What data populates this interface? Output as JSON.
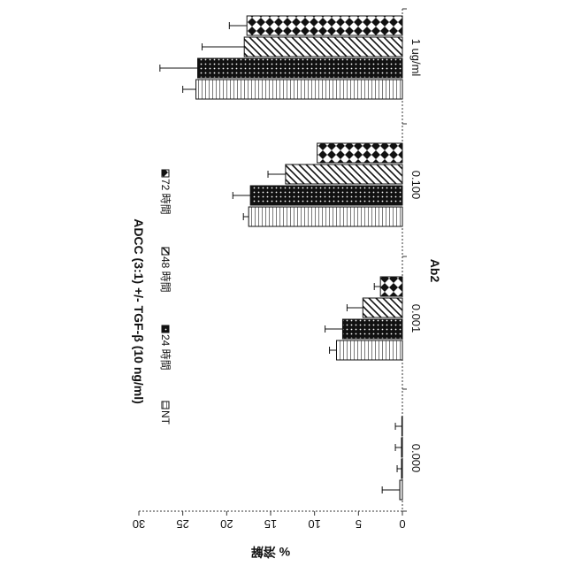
{
  "chart_data": {
    "type": "bar",
    "title": "ADCC (3:1) +/- TGF-β (10 ng/ml)",
    "xlabel": "Ab2",
    "ylabel": "% 溶解",
    "categories": [
      "0.000",
      "0.001",
      "0.100",
      "1 ug/ml"
    ],
    "ylim": [
      0,
      30
    ],
    "yticks": [
      "0",
      "5",
      "10",
      "15",
      "20",
      "25",
      "30"
    ],
    "rotation": "rotated 90° clockwise (value axis runs along the bottom edge)",
    "grid": false,
    "legend_position": "top",
    "series": [
      {
        "name": "NT",
        "values": [
          0.3,
          7.5,
          17.5,
          23.5
        ],
        "errors": [
          2.0,
          0.8,
          0.6,
          1.5
        ],
        "pattern": "horizontal-lines"
      },
      {
        "name": "24 時間",
        "values": [
          0.1,
          6.8,
          17.3,
          23.3
        ],
        "errors": [
          0.5,
          2.0,
          2.0,
          4.3
        ],
        "pattern": "dots"
      },
      {
        "name": "48 時間",
        "values": [
          0.1,
          4.5,
          13.3,
          18.0
        ],
        "errors": [
          0.7,
          1.8,
          2.0,
          4.8
        ],
        "pattern": "diagonal-lines"
      },
      {
        "name": "72 時間",
        "values": [
          0.0,
          2.5,
          9.7,
          17.7
        ],
        "errors": [
          0.8,
          0.7,
          0.0,
          2.0
        ],
        "pattern": "diamonds"
      }
    ]
  }
}
